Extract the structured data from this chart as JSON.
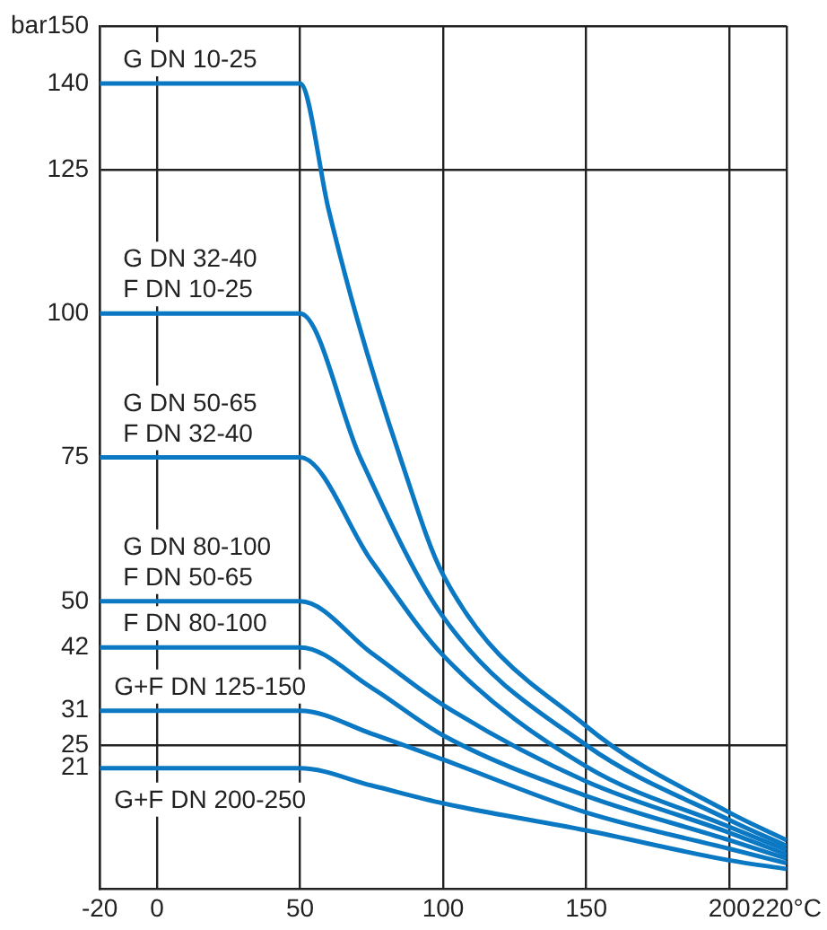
{
  "chart_data": {
    "type": "line",
    "series": [
      {
        "name": "G DN 10-25",
        "color": "#0a78c2",
        "x": [
          -20,
          50,
          60,
          70,
          85,
          100,
          150,
          200,
          220
        ],
        "values": [
          140,
          140,
          118,
          99,
          75,
          54.6,
          28.3,
          13.3,
          8.5
        ]
      },
      {
        "name": "G DN 32-40\nF DN 10-25",
        "color": "#0a78c2",
        "x": [
          -20,
          50,
          71,
          100,
          150,
          200,
          220
        ],
        "values": [
          100,
          100,
          75,
          47.3,
          25,
          12,
          7.5
        ]
      },
      {
        "name": "G DN 50-65\nF DN 32-40",
        "color": "#0a78c2",
        "x": [
          -20,
          50,
          75,
          100,
          150,
          200,
          220
        ],
        "values": [
          75,
          75,
          57,
          40.6,
          21.3,
          10.8,
          6.8
        ]
      },
      {
        "name": "G DN 80-100\nF DN 50-65",
        "color": "#0a78c2",
        "x": [
          -20,
          50,
          75,
          100,
          150,
          200,
          220
        ],
        "values": [
          50,
          50,
          41,
          32,
          18.7,
          9.8,
          6
        ]
      },
      {
        "name": "F DN 80-100",
        "color": "#0a78c2",
        "x": [
          -20,
          50,
          75,
          100,
          150,
          200,
          220
        ],
        "values": [
          42,
          42,
          35,
          26.7,
          16.2,
          8.5,
          5.3
        ]
      },
      {
        "name": "G+F DN 125-150",
        "color": "#0a78c2",
        "x": [
          -20,
          50,
          75,
          100,
          150,
          200,
          220
        ],
        "values": [
          31,
          31,
          27,
          22.5,
          13.3,
          7,
          4.5
        ]
      },
      {
        "name": "G+F DN 200-250",
        "color": "#0a78c2",
        "x": [
          -20,
          50,
          75,
          100,
          150,
          200,
          220
        ],
        "values": [
          21,
          21,
          18,
          14.9,
          10.2,
          5,
          3.5
        ]
      }
    ],
    "xlim": [
      -20,
      220
    ],
    "xticks": [
      -20,
      0,
      50,
      100,
      150,
      200,
      {
        "value": 220,
        "label": "220°C"
      }
    ],
    "ylim": [
      0,
      150
    ],
    "yticks": [
      21,
      25,
      31,
      42,
      50,
      75,
      100,
      125,
      140,
      {
        "value": 150,
        "label": "bar150"
      }
    ],
    "grid": true,
    "legend": false,
    "marker": "none",
    "line_style": "solid"
  }
}
